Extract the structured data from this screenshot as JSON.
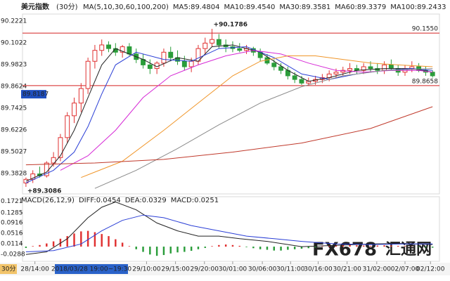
{
  "chart_data": [
    {
      "type": "candlestick",
      "title": "美元指数",
      "subtitle": "(30分)",
      "legend_title": "MA(5,10,30,60,100,200)",
      "xlim": [
        -0.5,
        60
      ],
      "ylim": [
        89.27,
        90.26
      ],
      "yticks": [
        90.2221,
        90.1022,
        89.9823,
        89.8624,
        89.7425,
        89.6226,
        89.5027,
        89.3828
      ],
      "up_color": "#e03030",
      "down_color": "#2a9d3a",
      "open": [
        89.33,
        89.35,
        89.38,
        89.37,
        89.44,
        89.47,
        89.58,
        89.7,
        89.77,
        89.85,
        90.0,
        90.06,
        90.09,
        90.07,
        90.05,
        90.08,
        90.04,
        90.01,
        89.98,
        89.96,
        89.99,
        90.05,
        90.02,
        90.0,
        89.97,
        90.0,
        90.07,
        90.1,
        90.12,
        90.09,
        90.08,
        90.07,
        90.06,
        90.07,
        90.05,
        90.02,
        89.99,
        89.97,
        89.95,
        89.92,
        89.9,
        89.88,
        89.89,
        89.9,
        89.91,
        89.93,
        89.94,
        89.95,
        89.96,
        89.95,
        89.97,
        89.96,
        89.95,
        89.98,
        89.96,
        89.94,
        89.96,
        89.97,
        89.95,
        89.94
      ],
      "high": [
        89.36,
        89.4,
        89.42,
        89.45,
        89.5,
        89.6,
        89.72,
        89.8,
        89.88,
        90.02,
        90.09,
        90.12,
        90.11,
        90.1,
        90.09,
        90.1,
        90.07,
        90.04,
        90.01,
        90.0,
        90.07,
        90.08,
        90.06,
        90.03,
        90.02,
        90.09,
        90.13,
        90.1786,
        90.15,
        90.12,
        90.11,
        90.1,
        90.09,
        90.08,
        90.07,
        90.04,
        90.01,
        89.99,
        89.97,
        89.94,
        89.92,
        89.91,
        89.92,
        89.93,
        89.95,
        89.96,
        89.97,
        89.99,
        89.98,
        89.99,
        90.0,
        89.99,
        90.0,
        90.01,
        89.98,
        89.98,
        90.0,
        89.99,
        89.97,
        89.95
      ],
      "low": [
        89.3086,
        89.33,
        89.36,
        89.36,
        89.42,
        89.45,
        89.55,
        89.66,
        89.72,
        89.82,
        89.96,
        90.03,
        90.05,
        90.03,
        90.02,
        90.03,
        89.99,
        89.96,
        89.93,
        89.93,
        89.97,
        90.0,
        89.98,
        89.95,
        89.94,
        89.98,
        90.04,
        90.08,
        90.07,
        90.05,
        90.05,
        90.05,
        90.04,
        90.03,
        90.0,
        89.98,
        89.95,
        89.93,
        89.9,
        89.88,
        89.87,
        89.866,
        89.87,
        89.88,
        89.89,
        89.91,
        89.92,
        89.93,
        89.93,
        89.93,
        89.94,
        89.93,
        89.93,
        89.95,
        89.92,
        89.92,
        89.94,
        89.94,
        89.92,
        89.91
      ],
      "close": [
        89.35,
        89.38,
        89.37,
        89.44,
        89.47,
        89.58,
        89.7,
        89.77,
        89.85,
        90.0,
        90.06,
        90.09,
        90.07,
        90.05,
        90.08,
        90.04,
        90.01,
        89.98,
        89.96,
        89.99,
        90.05,
        90.02,
        90.0,
        89.97,
        90.0,
        90.07,
        90.1,
        90.12,
        90.09,
        90.08,
        90.07,
        90.06,
        90.07,
        90.05,
        90.02,
        89.99,
        89.97,
        89.95,
        89.92,
        89.9,
        89.88,
        89.89,
        89.9,
        89.91,
        89.93,
        89.94,
        89.95,
        89.96,
        89.95,
        89.97,
        89.96,
        89.95,
        89.98,
        89.96,
        89.94,
        89.96,
        89.97,
        89.95,
        89.94,
        89.92
      ],
      "lines": [
        {
          "name": "MA5:89.4804",
          "color": "#222222",
          "x": [
            0,
            3,
            5,
            7,
            9,
            11,
            13,
            17,
            19,
            22,
            25,
            27,
            30,
            34,
            38,
            41,
            44,
            48,
            52,
            56,
            59
          ],
          "values": [
            89.34,
            89.39,
            89.48,
            89.62,
            89.8,
            89.98,
            90.07,
            90.01,
            89.97,
            90.02,
            90.0,
            90.08,
            90.09,
            90.05,
            89.95,
            89.89,
            89.91,
            89.95,
            89.96,
            89.96,
            89.94
          ]
        },
        {
          "name": "MA10:89.4540",
          "color": "#2b3fd6",
          "x": [
            0,
            4,
            7,
            9,
            11,
            13,
            16,
            20,
            24,
            28,
            32,
            36,
            40,
            44,
            48,
            52,
            56,
            59
          ],
          "values": [
            89.33,
            89.4,
            89.5,
            89.64,
            89.82,
            89.98,
            90.05,
            90.01,
            90.0,
            90.07,
            90.08,
            90.02,
            89.93,
            89.9,
            89.93,
            89.95,
            89.96,
            89.95
          ]
        },
        {
          "name": "MA30:89.3581",
          "color": "#d62ad6",
          "x": [
            5,
            9,
            13,
            17,
            21,
            25,
            29,
            33,
            37,
            41,
            45,
            49,
            53,
            57,
            59
          ],
          "values": [
            89.4,
            89.48,
            89.62,
            89.8,
            89.92,
            89.98,
            90.03,
            90.06,
            90.04,
            89.99,
            89.95,
            89.94,
            89.95,
            89.95,
            89.94
          ]
        },
        {
          "name": "MA60:89.3379",
          "color": "#f0962a",
          "x": [
            8,
            14,
            20,
            26,
            30,
            34,
            38,
            42,
            46,
            50,
            54,
            59
          ],
          "values": [
            89.36,
            89.45,
            89.62,
            89.8,
            89.92,
            90.0,
            90.03,
            90.03,
            90.01,
            89.99,
            89.98,
            89.97
          ]
        },
        {
          "name": "MA100:89.2433",
          "color": "#8a8a8a",
          "x": [
            10,
            16,
            22,
            28,
            34,
            40,
            46,
            52,
            59
          ],
          "values": [
            89.3,
            89.4,
            89.52,
            89.65,
            89.77,
            89.86,
            89.92,
            89.95,
            89.96
          ]
        },
        {
          "name": "MA200:89.4180",
          "color": "#c0392b",
          "x": [
            0,
            10,
            20,
            30,
            40,
            50,
            59
          ],
          "values": [
            89.43,
            89.44,
            89.46,
            89.5,
            89.55,
            89.63,
            89.75
          ]
        }
      ],
      "hlines": [
        {
          "value": 90.155,
          "label": "90.1550",
          "color": "#d42020"
        },
        {
          "value": 89.8658,
          "label": "89.8658",
          "color": "#d42020"
        }
      ],
      "annotations": [
        {
          "label": "+90.1786",
          "x": 27,
          "value": 90.1786
        },
        {
          "label": "+89.3086",
          "x": 0,
          "value": 89.3086
        }
      ],
      "price_label": {
        "value": 89.8187,
        "label": "89.8187"
      }
    },
    {
      "type": "macd",
      "legend_title": "MACD(26,12,9)",
      "xlim": [
        -0.5,
        60
      ],
      "ylim": [
        -0.056,
        0.19
      ],
      "yticks": [
        0.1721,
        0.1285,
        0.0916,
        0.0516,
        0.0114,
        -0.0288
      ],
      "xticks": [
        {
          "value": 1.3,
          "label": "28/14:00"
        },
        {
          "value": 17.5,
          "label": "29/10:00"
        },
        {
          "value": 21.7,
          "label": "29/15:00"
        },
        {
          "value": 25.9,
          "label": "29/20:00"
        },
        {
          "value": 30,
          "label": "30/01:00"
        },
        {
          "value": 34.3,
          "label": "30/06:00"
        },
        {
          "value": 38.4,
          "label": "30/11:00"
        },
        {
          "value": 42.4,
          "label": "30/16:00"
        },
        {
          "value": 46.6,
          "label": "30/21:00"
        },
        {
          "value": 50.9,
          "label": "31/02:00"
        },
        {
          "value": 55,
          "label": "02/07:00"
        },
        {
          "value": 58.7,
          "label": "02/12:00"
        }
      ],
      "cursor": {
        "value": 9.5,
        "label": "2018/03/28 19:00~19:30"
      },
      "period": "30分",
      "up_color": "#e03030",
      "down_color": "#2a9d3a",
      "lines": [
        {
          "name": "DIFF:0.0454",
          "color": "#222222",
          "x": [
            0,
            3,
            6,
            9,
            11,
            13,
            16,
            19,
            22,
            25,
            28,
            31,
            35,
            40,
            45,
            50,
            55,
            59
          ],
          "values": [
            -0.03,
            -0.02,
            0.03,
            0.11,
            0.15,
            0.17,
            0.14,
            0.09,
            0.06,
            0.04,
            0.04,
            0.03,
            0.02,
            0.0,
            0.005,
            0.01,
            0.012,
            0.008
          ]
        },
        {
          "name": "DEA:0.0329",
          "color": "#2b3fd6",
          "x": [
            0,
            4,
            8,
            11,
            14,
            17,
            20,
            24,
            28,
            32,
            36,
            40,
            45,
            50,
            55,
            59
          ],
          "values": [
            -0.02,
            -0.015,
            0.01,
            0.06,
            0.1,
            0.12,
            0.11,
            0.08,
            0.06,
            0.04,
            0.03,
            0.02,
            0.01,
            0.008,
            0.01,
            0.01
          ]
        }
      ],
      "bars": {
        "name": "MACD:0.0251",
        "color": "#d62ad6",
        "values": [
          -0.005,
          0.002,
          0.006,
          0.012,
          0.02,
          0.03,
          0.04,
          0.05,
          0.058,
          0.06,
          0.055,
          0.048,
          0.04,
          0.028,
          0.015,
          0.002,
          -0.01,
          -0.02,
          -0.03,
          -0.035,
          -0.032,
          -0.026,
          -0.022,
          -0.02,
          -0.016,
          -0.01,
          -0.005,
          0.002,
          0.006,
          0.008,
          0.006,
          0.003,
          -0.002,
          -0.006,
          -0.01,
          -0.012,
          -0.015,
          -0.015,
          -0.012,
          -0.01,
          -0.008,
          -0.006,
          -0.003,
          0.002,
          0.004,
          0.005,
          0.006,
          0.006,
          0.005,
          0.004,
          0.003,
          0.004,
          0.005,
          0.004,
          0.003,
          0.002,
          0.001,
          -0.002,
          -0.003,
          -0.004
        ]
      }
    }
  ],
  "watermark": {
    "logo": "FX678",
    "name": "汇通网"
  }
}
